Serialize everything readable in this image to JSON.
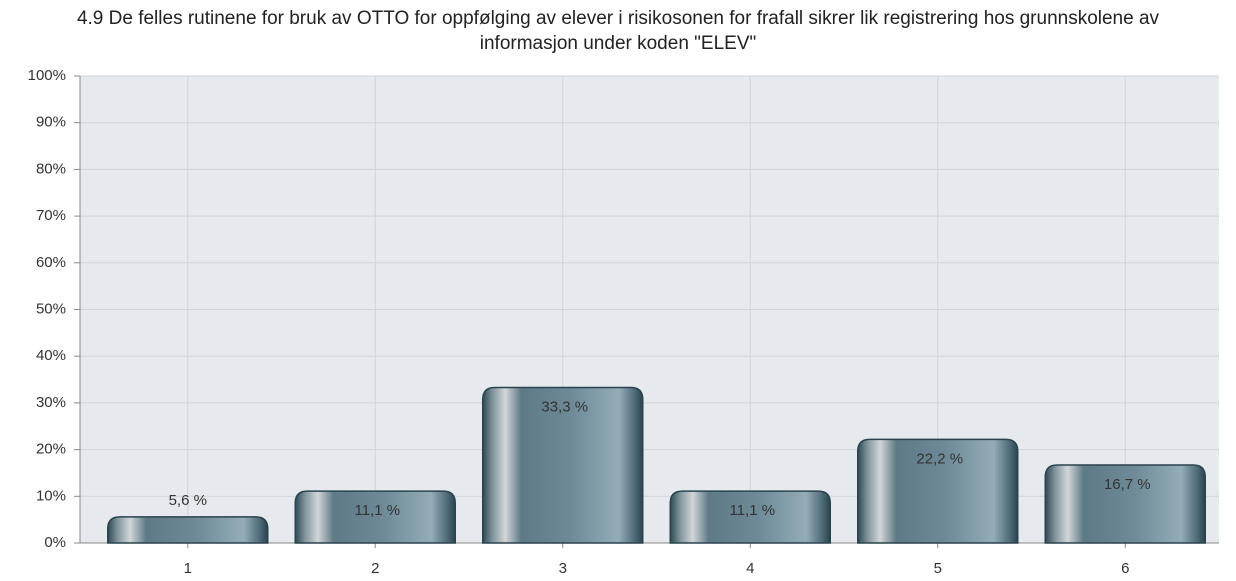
{
  "chart_data": {
    "type": "bar",
    "title": "4.9 De felles rutinene for bruk av OTTO for oppfølging av elever i risikosonen for frafall sikrer lik registrering hos grunnskolene av informasjon under koden \"ELEV\"",
    "categories": [
      "1",
      "2",
      "3",
      "4",
      "5",
      "6"
    ],
    "values": [
      5.6,
      11.1,
      33.3,
      11.1,
      22.2,
      16.7
    ],
    "value_labels": [
      "5,6 %",
      "11,1 %",
      "33,3 %",
      "11,1 %",
      "22,2 %",
      "16,7 %"
    ],
    "color": "#5f7c88",
    "ylim": [
      0,
      100
    ],
    "yticks": [
      {
        "value": 0,
        "label": "0%"
      },
      {
        "value": 10,
        "label": "10%"
      },
      {
        "value": 20,
        "label": "20%"
      },
      {
        "value": 30,
        "label": "30%"
      },
      {
        "value": 40,
        "label": "40%"
      },
      {
        "value": 50,
        "label": "50%"
      },
      {
        "value": 60,
        "label": "60%"
      },
      {
        "value": 70,
        "label": "70%"
      },
      {
        "value": 80,
        "label": "80%"
      },
      {
        "value": 90,
        "label": "90%"
      },
      {
        "value": 100,
        "label": "100%"
      }
    ],
    "grid": true
  }
}
